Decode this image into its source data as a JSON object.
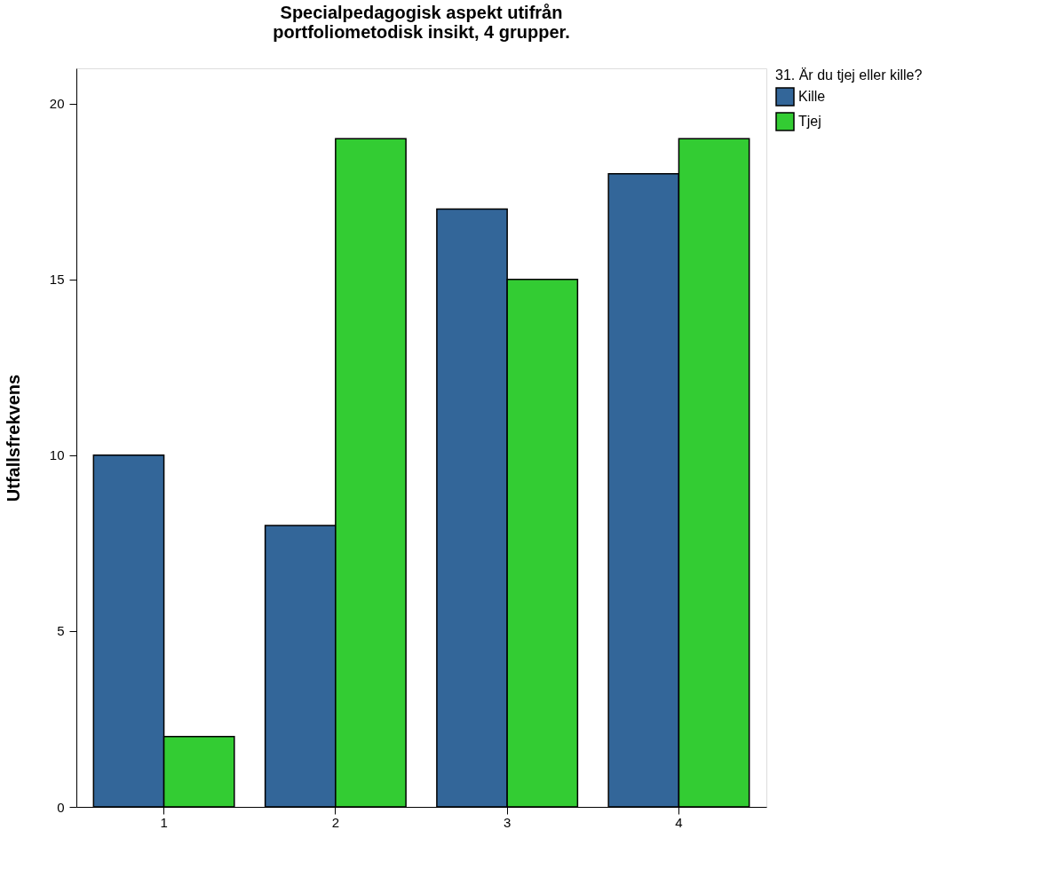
{
  "chart_data": {
    "type": "bar",
    "title": "Specialpedagogisk aspekt utifrån\nportfoliometodisk insikt, 4 grupper.",
    "ylabel": "Utfallsfrekvens",
    "legend_title": "31. Är du tjej eller kille?",
    "categories": [
      "1",
      "2",
      "3",
      "4"
    ],
    "series": [
      {
        "name": "Kille",
        "color": "#336699",
        "values": [
          10,
          8,
          17,
          18
        ]
      },
      {
        "name": "Tjej",
        "color": "#33cc33",
        "values": [
          2,
          19,
          15,
          19
        ]
      }
    ],
    "ylim": [
      0,
      21
    ],
    "yticks": [
      0,
      5,
      10,
      15,
      20
    ],
    "grid": false,
    "legend": "right"
  }
}
